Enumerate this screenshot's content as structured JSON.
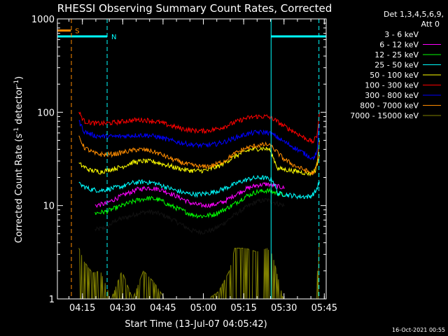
{
  "chart_data": {
    "type": "line",
    "title": "RHESSI Observing Summary Count Rates, Corrected",
    "xlabel": "Start Time (13-Jul-07 04:05:42)",
    "ylabel_main": "Corrected Count Rate (s",
    "ylabel_sup1": "-1",
    "ylabel_mid": " detector",
    "ylabel_sup2": "-1",
    "ylabel_end": ")",
    "y_scale": "log",
    "ylim": [
      1,
      1000
    ],
    "y_ticks": [
      {
        "value": 1,
        "label": "1"
      },
      {
        "value": 10,
        "label": "10"
      },
      {
        "value": 100,
        "label": "100"
      },
      {
        "value": 1000,
        "label": "1000"
      }
    ],
    "xlim_minutes": [
      0,
      100
    ],
    "x_ticks": [
      {
        "minute": 9.3,
        "label": "04:15"
      },
      {
        "minute": 24.3,
        "label": "04:30"
      },
      {
        "minute": 39.3,
        "label": "04:45"
      },
      {
        "minute": 54.3,
        "label": "05:00"
      },
      {
        "minute": 69.3,
        "label": "05:15"
      },
      {
        "minute": 84.3,
        "label": "05:30"
      },
      {
        "minute": 99.3,
        "label": "05:45"
      }
    ],
    "legend_header": [
      "Det 1,3,4,5,6,9,",
      "Att 0"
    ],
    "legend_placement": "right",
    "timestamp": "16-Oct-2021 00:55",
    "flag_S": {
      "label": "S",
      "color": "#ff8c00",
      "start": 0,
      "end": 5,
      "level": 750
    },
    "flag_N": {
      "label": "N",
      "color": "#00ffff",
      "segments": [
        [
          0,
          18.5
        ],
        [
          79.5,
          100
        ]
      ],
      "level": 650
    },
    "vlines": [
      {
        "minute": 5.2,
        "color": "#ff8c00",
        "style": "dashed"
      },
      {
        "minute": 18.5,
        "color": "#00ffff",
        "style": "dashed"
      },
      {
        "minute": 79.5,
        "color": "#00ffff",
        "style": "solid"
      },
      {
        "minute": 97.3,
        "color": "#00ffff",
        "style": "dashed"
      }
    ],
    "series": [
      {
        "name": "3 - 6 keV",
        "color": "#000000",
        "points": [
          [
            14,
            5.5
          ],
          [
            18,
            5.8
          ],
          [
            22,
            7
          ],
          [
            26,
            7.5
          ],
          [
            30,
            8.3
          ],
          [
            34,
            8.6
          ],
          [
            38,
            8.2
          ],
          [
            42,
            7.3
          ],
          [
            46,
            6.3
          ],
          [
            50,
            5.4
          ],
          [
            54,
            5.2
          ],
          [
            58,
            5.5
          ],
          [
            62,
            6.5
          ],
          [
            66,
            8
          ],
          [
            70,
            9.5
          ],
          [
            74,
            11
          ],
          [
            78,
            11.5
          ],
          [
            80,
            11
          ],
          [
            82,
            10.5
          ],
          [
            84.5,
            10
          ]
        ]
      },
      {
        "name": "6 - 12 keV",
        "color": "#ff00ff",
        "points": [
          [
            14,
            10
          ],
          [
            18,
            10.5
          ],
          [
            22,
            12
          ],
          [
            26,
            13.5
          ],
          [
            30,
            15
          ],
          [
            34,
            15.5
          ],
          [
            38,
            15
          ],
          [
            42,
            13.5
          ],
          [
            46,
            12
          ],
          [
            50,
            10.5
          ],
          [
            54,
            10
          ],
          [
            58,
            10.2
          ],
          [
            62,
            11
          ],
          [
            66,
            13
          ],
          [
            70,
            15
          ],
          [
            74,
            16.5
          ],
          [
            78,
            17
          ],
          [
            80,
            16.5
          ],
          [
            82,
            16
          ],
          [
            84.5,
            15.5
          ]
        ]
      },
      {
        "name": "12 - 25 keV",
        "color": "#00ff00",
        "points": [
          [
            14,
            8.3
          ],
          [
            18,
            8.6
          ],
          [
            22,
            9.5
          ],
          [
            26,
            10.5
          ],
          [
            30,
            11.5
          ],
          [
            34,
            12
          ],
          [
            38,
            11.5
          ],
          [
            42,
            10
          ],
          [
            46,
            9
          ],
          [
            50,
            8
          ],
          [
            54,
            7.7
          ],
          [
            58,
            8
          ],
          [
            62,
            9
          ],
          [
            66,
            10.5
          ],
          [
            70,
            12.5
          ],
          [
            74,
            14
          ],
          [
            78,
            14.5
          ],
          [
            80,
            14
          ],
          [
            82,
            13.5
          ],
          [
            84.5,
            13
          ]
        ]
      },
      {
        "name": "25 - 50 keV",
        "color": "#00ffff",
        "points": [
          [
            8,
            17
          ],
          [
            12,
            15
          ],
          [
            16,
            14.5
          ],
          [
            20,
            15.2
          ],
          [
            24,
            16
          ],
          [
            28,
            17.5
          ],
          [
            32,
            18
          ],
          [
            36,
            17.5
          ],
          [
            40,
            16
          ],
          [
            44,
            14.5
          ],
          [
            48,
            13.5
          ],
          [
            52,
            13.2
          ],
          [
            56,
            13.5
          ],
          [
            60,
            14.5
          ],
          [
            64,
            16
          ],
          [
            68,
            18
          ],
          [
            72,
            19.5
          ],
          [
            76,
            20
          ],
          [
            80,
            19
          ],
          [
            82,
            13.5
          ],
          [
            86,
            13
          ],
          [
            90,
            12.5
          ],
          [
            94,
            12.5
          ],
          [
            96,
            14
          ],
          [
            97.5,
            18
          ]
        ]
      },
      {
        "name": "50 - 100 keV",
        "color": "#ffff00",
        "points": [
          [
            8,
            28
          ],
          [
            12,
            24
          ],
          [
            16,
            23
          ],
          [
            20,
            24.5
          ],
          [
            24,
            26
          ],
          [
            28,
            29
          ],
          [
            32,
            30
          ],
          [
            36,
            29.5
          ],
          [
            40,
            27.5
          ],
          [
            44,
            25.5
          ],
          [
            48,
            24
          ],
          [
            52,
            23.5
          ],
          [
            56,
            24
          ],
          [
            60,
            26.5
          ],
          [
            64,
            31
          ],
          [
            68,
            36
          ],
          [
            72,
            40
          ],
          [
            76,
            41
          ],
          [
            79,
            40
          ],
          [
            82,
            25
          ],
          [
            86,
            24
          ],
          [
            90,
            23
          ],
          [
            94,
            22
          ],
          [
            96,
            24
          ],
          [
            97.5,
            35
          ]
        ]
      },
      {
        "name": "100 - 300 keV",
        "color": "#ff0000",
        "points": [
          [
            8,
            100
          ],
          [
            10,
            80
          ],
          [
            14,
            76
          ],
          [
            18,
            76
          ],
          [
            22,
            78
          ],
          [
            26,
            81
          ],
          [
            30,
            83
          ],
          [
            34,
            82
          ],
          [
            38,
            78
          ],
          [
            42,
            72
          ],
          [
            46,
            67
          ],
          [
            50,
            64
          ],
          [
            54,
            63
          ],
          [
            58,
            65
          ],
          [
            62,
            70
          ],
          [
            66,
            78
          ],
          [
            70,
            86
          ],
          [
            74,
            90
          ],
          [
            78,
            90
          ],
          [
            80,
            86
          ],
          [
            84,
            72
          ],
          [
            88,
            62
          ],
          [
            92,
            53
          ],
          [
            95,
            48
          ],
          [
            96.5,
            55
          ],
          [
            97.5,
            100
          ]
        ]
      },
      {
        "name": "300 - 800 keV",
        "color": "#0000ff",
        "points": [
          [
            8,
            80
          ],
          [
            10,
            62
          ],
          [
            14,
            56
          ],
          [
            18,
            55
          ],
          [
            22,
            55
          ],
          [
            26,
            56
          ],
          [
            30,
            57
          ],
          [
            34,
            56.5
          ],
          [
            38,
            54
          ],
          [
            42,
            50
          ],
          [
            46,
            47
          ],
          [
            50,
            45
          ],
          [
            54,
            44
          ],
          [
            58,
            45
          ],
          [
            62,
            48
          ],
          [
            66,
            53
          ],
          [
            70,
            58
          ],
          [
            74,
            61
          ],
          [
            78,
            61
          ],
          [
            80,
            58
          ],
          [
            84,
            49
          ],
          [
            88,
            42
          ],
          [
            92,
            36
          ],
          [
            95,
            32
          ],
          [
            96.5,
            36
          ],
          [
            97.5,
            75
          ]
        ]
      },
      {
        "name": "800 - 7000 keV",
        "color": "#ff8c00",
        "points": [
          [
            8,
            55
          ],
          [
            10,
            42
          ],
          [
            14,
            36
          ],
          [
            18,
            35
          ],
          [
            22,
            36
          ],
          [
            26,
            38
          ],
          [
            30,
            40
          ],
          [
            34,
            39
          ],
          [
            38,
            36
          ],
          [
            42,
            32
          ],
          [
            46,
            29
          ],
          [
            50,
            27
          ],
          [
            54,
            26
          ],
          [
            58,
            27
          ],
          [
            62,
            30
          ],
          [
            66,
            36
          ],
          [
            70,
            41
          ],
          [
            74,
            44
          ],
          [
            78,
            45
          ],
          [
            80,
            42
          ],
          [
            84,
            32
          ],
          [
            88,
            27
          ],
          [
            92,
            24
          ],
          [
            95,
            22
          ],
          [
            96.5,
            26
          ],
          [
            97.5,
            50
          ]
        ]
      },
      {
        "name": "7000 - 15000 keV",
        "color": "#808000",
        "points": [
          [
            8,
            3.5
          ],
          [
            10,
            2.5
          ],
          [
            13,
            1.9
          ],
          [
            16,
            2
          ],
          [
            20,
            1
          ],
          [
            24,
            2
          ],
          [
            28,
            1
          ],
          [
            32,
            2
          ],
          [
            36,
            1.5
          ],
          [
            40,
            1
          ],
          [
            44,
            1
          ],
          [
            48,
            1
          ],
          [
            52,
            1
          ],
          [
            56,
            1
          ],
          [
            60,
            1.2
          ],
          [
            64,
            2
          ],
          [
            66,
            3.5
          ],
          [
            70,
            3.5
          ],
          [
            74,
            3.2
          ],
          [
            78,
            3.5
          ],
          [
            80,
            3
          ],
          [
            84,
            1
          ],
          [
            88,
            1
          ],
          [
            92,
            1
          ],
          [
            96,
            1
          ],
          [
            97.5,
            4
          ]
        ]
      }
    ]
  }
}
